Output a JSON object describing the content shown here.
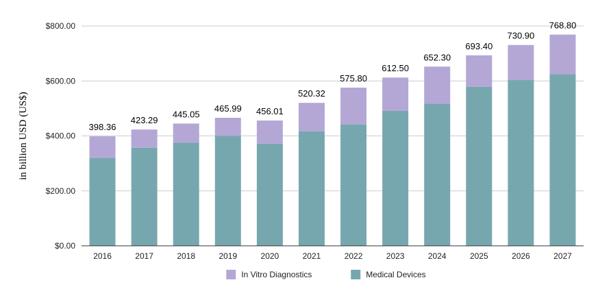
{
  "chart_data": {
    "type": "bar",
    "stacked": true,
    "title": "",
    "xlabel": "",
    "ylabel": "in billion USD (US$)",
    "categories": [
      "2016",
      "2017",
      "2018",
      "2019",
      "2020",
      "2021",
      "2022",
      "2023",
      "2024",
      "2025",
      "2026",
      "2027"
    ],
    "series": [
      {
        "name": "Medical Devices",
        "color": "#77a7ae",
        "values": [
          320,
          357,
          375,
          400,
          372,
          417,
          442,
          491,
          517,
          579,
          604,
          625
        ]
      },
      {
        "name": "In Vitro Diagnostics",
        "color": "#b4a7d6",
        "values": [
          78.36,
          66.29,
          70.05,
          65.99,
          84.01,
          103.32,
          133.8,
          121.5,
          135.3,
          114.4,
          126.9,
          143.8
        ]
      }
    ],
    "totals": [
      "398.36",
      "423.29",
      "445.05",
      "465.99",
      "456.01",
      "520.32",
      "575.80",
      "612.50",
      "652.30",
      "693.40",
      "730.90",
      "768.80"
    ],
    "ylim": [
      0,
      800
    ],
    "yticks": [
      0,
      200,
      400,
      600,
      800
    ],
    "ytick_labels": [
      "$0.00",
      "$200.00",
      "$400.00",
      "$600.00",
      "$800.00"
    ],
    "grid": true,
    "legend_position": "bottom",
    "legend_order": [
      "In Vitro Diagnostics",
      "Medical Devices"
    ]
  }
}
